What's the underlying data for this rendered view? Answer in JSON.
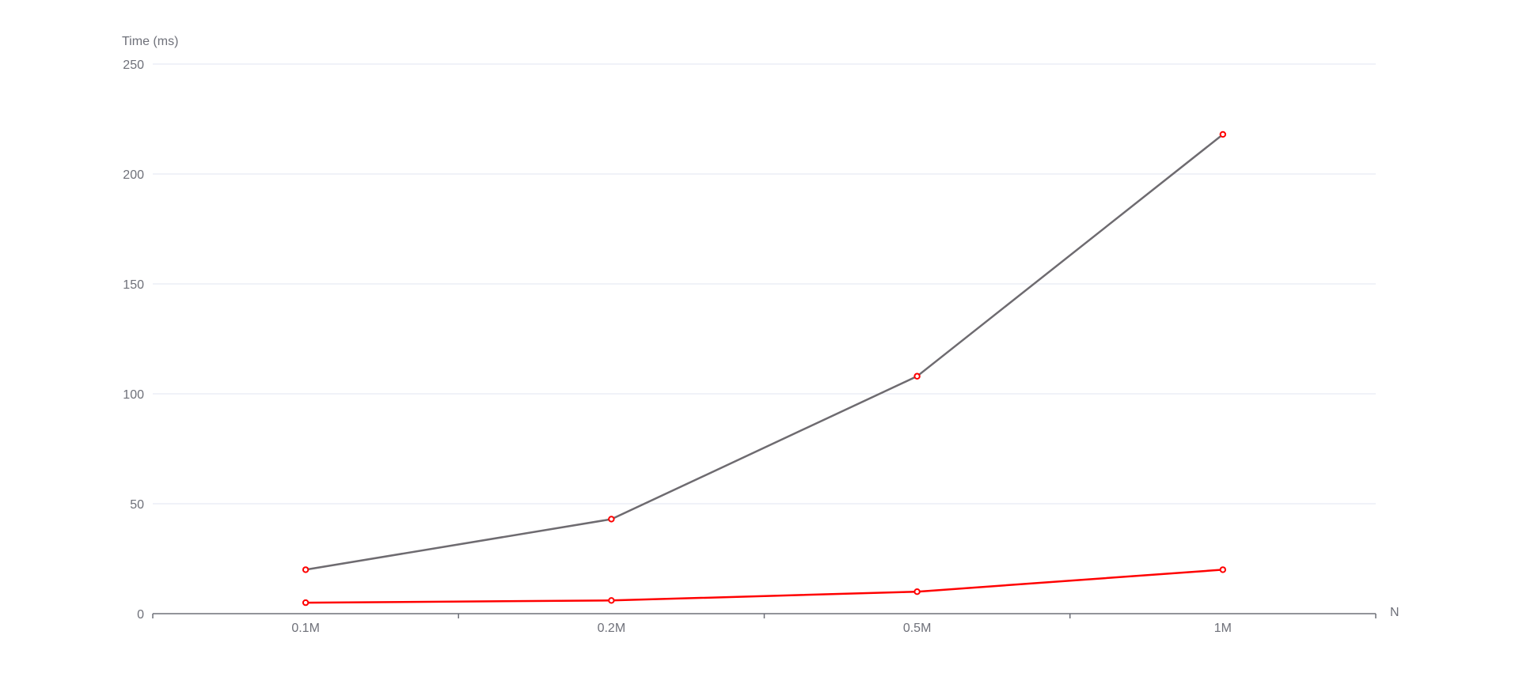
{
  "chart_data": {
    "type": "line",
    "title": "",
    "xlabel": "N",
    "ylabel": "Time (ms)",
    "categories": [
      "0.1M",
      "0.2M",
      "0.5M",
      "1M"
    ],
    "ylim": [
      0,
      250
    ],
    "yticks": [
      0,
      50,
      100,
      150,
      200,
      250
    ],
    "grid": true,
    "legend": "none",
    "series": [
      {
        "values": [
          20,
          43,
          108,
          218
        ],
        "color": "#6e6b70",
        "marker_color": "#ff0000"
      },
      {
        "values": [
          5,
          6,
          10,
          20
        ],
        "color": "#ff0000",
        "marker_color": "#ff0000"
      }
    ]
  },
  "colors": {
    "axis": "#6e7079",
    "grid": "#e0e6f1",
    "text": "#6e7079"
  }
}
